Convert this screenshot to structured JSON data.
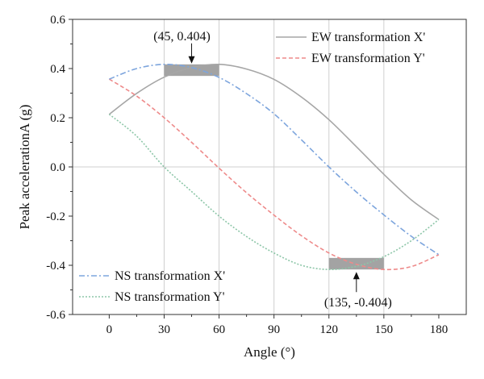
{
  "chart_data": {
    "type": "line",
    "xlabel": "Angle (°)",
    "ylabel": "Peak accelerationA (g)",
    "xlim": [
      -20,
      195
    ],
    "ylim": [
      -0.6,
      0.6
    ],
    "x_ticks": [
      0,
      30,
      60,
      90,
      120,
      150,
      180
    ],
    "y_ticks": [
      -0.6,
      -0.4,
      -0.2,
      0.0,
      0.2,
      0.4,
      0.6
    ],
    "x_tick_labels": [
      "0",
      "30",
      "60",
      "90",
      "120",
      "150",
      "180"
    ],
    "y_tick_labels": [
      "-0.6",
      "-0.4",
      "-0.2",
      "0.0",
      "0.2",
      "0.4",
      "0.6"
    ],
    "grid": false,
    "reference_lines": {
      "vertical_x": [
        30,
        60,
        90,
        120,
        150
      ],
      "horizontal_y": [
        0.0
      ],
      "color": "#cfcfcf"
    },
    "series": [
      {
        "name": "EW transformation X'",
        "color": "#a6a6a6",
        "style": "solid",
        "x": [
          0,
          15,
          30,
          45,
          60,
          75,
          90,
          105,
          120,
          135,
          150,
          165,
          180
        ],
        "y": [
          0.214,
          0.299,
          0.365,
          0.404,
          0.417,
          0.398,
          0.356,
          0.284,
          0.192,
          0.082,
          -0.03,
          -0.134,
          -0.214
        ]
      },
      {
        "name": "EW transformation Y'",
        "color": "#ee8a8a",
        "style": "dashed",
        "x": [
          0,
          15,
          30,
          45,
          60,
          75,
          90,
          105,
          120,
          135,
          150,
          165,
          180
        ],
        "y": [
          0.357,
          0.288,
          0.2,
          0.1,
          -0.005,
          -0.105,
          -0.196,
          -0.28,
          -0.35,
          -0.396,
          -0.417,
          -0.405,
          -0.357
        ]
      },
      {
        "name": "NS transformation X'",
        "color": "#7da5dd",
        "style": "dashdot",
        "x": [
          0,
          15,
          30,
          45,
          60,
          75,
          90,
          105,
          120,
          135,
          150,
          165,
          180
        ],
        "y": [
          0.357,
          0.4,
          0.417,
          0.404,
          0.364,
          0.298,
          0.216,
          0.11,
          0.0,
          -0.102,
          -0.195,
          -0.282,
          -0.357
        ]
      },
      {
        "name": "NS transformation Y'",
        "color": "#8dc6a8",
        "style": "dotted",
        "x": [
          0,
          15,
          30,
          45,
          60,
          75,
          90,
          105,
          120,
          135,
          150,
          165,
          180
        ],
        "y": [
          0.214,
          0.125,
          0.0,
          -0.1,
          -0.2,
          -0.283,
          -0.35,
          -0.4,
          -0.417,
          -0.404,
          -0.365,
          -0.3,
          -0.214
        ]
      }
    ],
    "highlight_boxes": [
      {
        "x_from": 30,
        "x_to": 60,
        "y_from": 0.37,
        "y_to": 0.417,
        "color": "#a3a3a3"
      },
      {
        "x_from": 120,
        "x_to": 150,
        "y_from": -0.417,
        "y_to": -0.37,
        "color": "#a3a3a3"
      }
    ],
    "annotations": [
      {
        "text": "(45, 0.404)",
        "x": 45,
        "y": 0.404,
        "label_position": "above"
      },
      {
        "text": "(135, -0.404)",
        "x": 135,
        "y": -0.404,
        "label_position": "below"
      }
    ],
    "legends": [
      {
        "placement": "top-right",
        "series": [
          "EW transformation X'",
          "EW transformation Y'"
        ]
      },
      {
        "placement": "bottom-left",
        "series": [
          "NS transformation X'",
          "NS transformation Y'"
        ]
      }
    ]
  }
}
